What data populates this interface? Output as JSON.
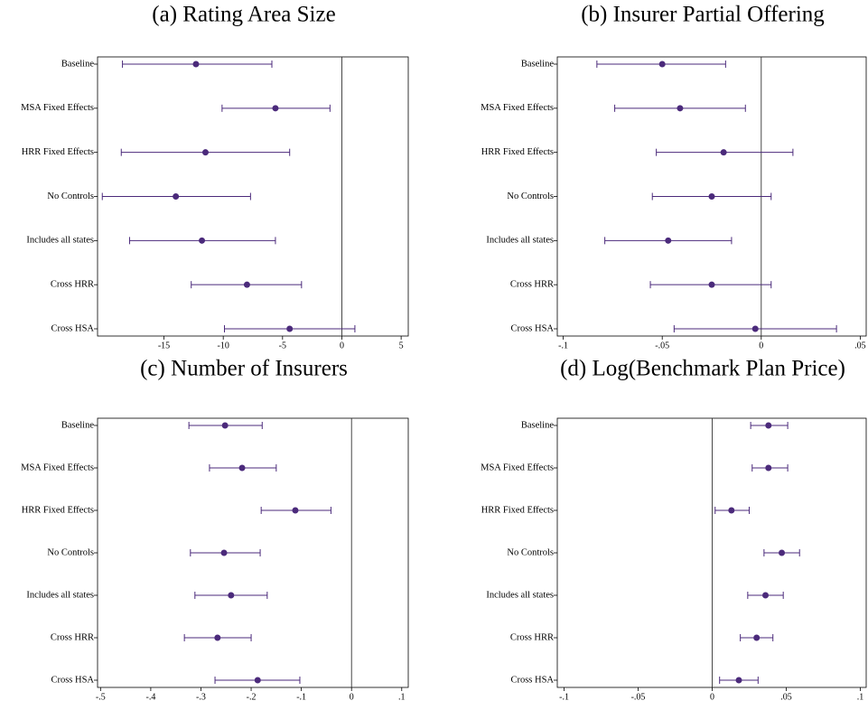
{
  "chart_data": [
    {
      "type": "coefficient",
      "title": "(a) Rating Area Size",
      "categories": [
        "Baseline",
        "MSA Fixed Effects",
        "HRR Fixed Effects",
        "No Controls",
        "Includes all states",
        "Cross HRR",
        "Cross HSA"
      ],
      "values": [
        -12.3,
        -5.6,
        -11.5,
        -14.0,
        -11.8,
        -8.0,
        -4.4
      ],
      "lower": [
        -18.5,
        -10.1,
        -18.6,
        -20.2,
        -17.9,
        -12.7,
        -9.9
      ],
      "upper": [
        -5.9,
        -1.0,
        -4.4,
        -7.7,
        -5.6,
        -3.4,
        1.1
      ],
      "color": "#4b2a7b",
      "xlim": [
        -20.6,
        5.6
      ],
      "xticks": [
        -15,
        -10,
        -5,
        0,
        5
      ],
      "refline": 0
    },
    {
      "type": "coefficient",
      "title": "(b) Insurer Partial Offering",
      "categories": [
        "Baseline",
        "MSA Fixed Effects",
        "HRR Fixed Effects",
        "No Controls",
        "Includes all states",
        "Cross HRR",
        "Cross HSA"
      ],
      "values": [
        -0.05,
        -0.041,
        -0.019,
        -0.025,
        -0.047,
        -0.025,
        -0.003
      ],
      "lower": [
        -0.083,
        -0.074,
        -0.053,
        -0.055,
        -0.079,
        -0.056,
        -0.044
      ],
      "upper": [
        -0.018,
        -0.008,
        0.016,
        0.005,
        -0.015,
        0.005,
        0.038
      ],
      "color": "#4b2a7b",
      "xlim": [
        -0.103,
        0.053
      ],
      "xticks": [
        {
          "value": -0.1,
          "label": "-.1"
        },
        {
          "value": -0.05,
          "label": "-.05"
        },
        0,
        {
          "value": 0.05,
          "label": ".05"
        }
      ],
      "refline": 0
    },
    {
      "type": "coefficient",
      "title": "(c) Number of Insurers",
      "categories": [
        "Baseline",
        "MSA Fixed Effects",
        "HRR Fixed Effects",
        "No Controls",
        "Includes all states",
        "Cross HRR",
        "Cross HSA"
      ],
      "values": [
        -0.252,
        -0.218,
        -0.112,
        -0.254,
        -0.24,
        -0.267,
        -0.187
      ],
      "lower": [
        -0.324,
        -0.283,
        -0.18,
        -0.321,
        -0.312,
        -0.333,
        -0.272
      ],
      "upper": [
        -0.178,
        -0.15,
        -0.041,
        -0.182,
        -0.168,
        -0.2,
        -0.103
      ],
      "color": "#4b2a7b",
      "xlim": [
        -0.506,
        0.113
      ],
      "xticks": [
        {
          "value": -0.5,
          "label": "-.5"
        },
        {
          "value": -0.4,
          "label": "-.4"
        },
        {
          "value": -0.3,
          "label": "-.3"
        },
        {
          "value": -0.2,
          "label": "-.2"
        },
        {
          "value": -0.1,
          "label": "-.1"
        },
        0,
        {
          "value": 0.1,
          "label": ".1"
        }
      ],
      "refline": 0
    },
    {
      "type": "coefficient",
      "title": "(d) Log(Benchmark Plan Price)",
      "categories": [
        "Baseline",
        "MSA Fixed Effects",
        "HRR Fixed Effects",
        "No Controls",
        "Includes all states",
        "Cross HRR",
        "Cross HSA"
      ],
      "values": [
        0.038,
        0.038,
        0.013,
        0.047,
        0.036,
        0.03,
        0.018
      ],
      "lower": [
        0.026,
        0.027,
        0.002,
        0.035,
        0.024,
        0.019,
        0.005
      ],
      "upper": [
        0.051,
        0.051,
        0.025,
        0.059,
        0.048,
        0.041,
        0.031
      ],
      "color": "#4b2a7b",
      "xlim": [
        -0.1046,
        0.104
      ],
      "xticks": [
        {
          "value": -0.1,
          "label": "-.1"
        },
        {
          "value": -0.05,
          "label": "-.05"
        },
        0,
        {
          "value": 0.05,
          "label": ".05"
        },
        {
          "value": 0.1,
          "label": ".1"
        }
      ],
      "refline": 0
    }
  ]
}
